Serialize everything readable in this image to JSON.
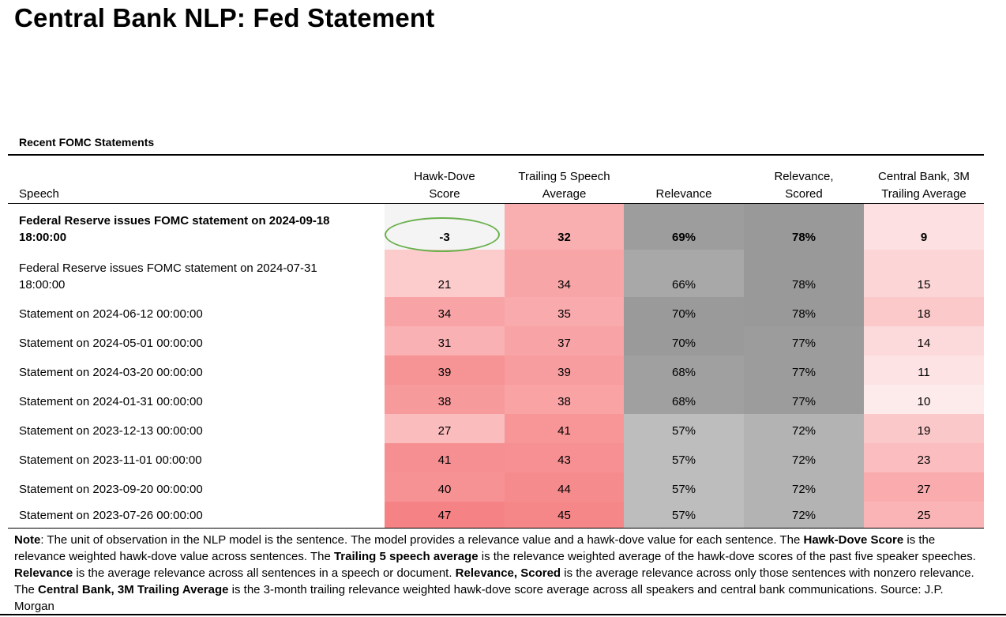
{
  "title": "Central Bank NLP: Fed Statement",
  "section_title": "Recent FOMC Statements",
  "columns": {
    "speech": "Speech",
    "hawk_dove": "Hawk-Dove\nScore",
    "trailing5": "Trailing 5 Speech\nAverage",
    "relevance": "Relevance",
    "relevance_scored": "Relevance,\nScored",
    "cb_3m": "Central Bank, 3M\nTrailing Average"
  },
  "rows": [
    {
      "speech": "Federal Reserve issues FOMC statement on 2024-09-18\n18:00:00",
      "hawk_dove": "-3",
      "trailing5": "32",
      "relevance": "69%",
      "relevance_scored": "78%",
      "cb_3m": "9",
      "bold": true,
      "colors": {
        "hawk_dove": "#f4f4f4",
        "trailing5": "#f9aeb0",
        "relevance": "#9d9d9d",
        "relevance_scored": "#999999",
        "cb_3m": "#fde0e1"
      }
    },
    {
      "speech": "Federal Reserve issues FOMC statement on 2024-07-31\n18:00:00",
      "hawk_dove": "21",
      "trailing5": "34",
      "relevance": "66%",
      "relevance_scored": "78%",
      "cb_3m": "15",
      "bold": false,
      "colors": {
        "hawk_dove": "#fccccd",
        "trailing5": "#f8a5a7",
        "relevance": "#a8a8a8",
        "relevance_scored": "#999999",
        "cb_3m": "#fcd5d6"
      }
    },
    {
      "speech": "Statement on 2024-06-12 00:00:00",
      "hawk_dove": "34",
      "trailing5": "35",
      "relevance": "70%",
      "relevance_scored": "78%",
      "cb_3m": "18",
      "bold": false,
      "colors": {
        "hawk_dove": "#f8a3a5",
        "trailing5": "#f9aaac",
        "relevance": "#9a9a9a",
        "relevance_scored": "#999999",
        "cb_3m": "#fbc9ca"
      }
    },
    {
      "speech": "Statement on 2024-05-01 00:00:00",
      "hawk_dove": "31",
      "trailing5": "37",
      "relevance": "70%",
      "relevance_scored": "77%",
      "cb_3m": "14",
      "bold": false,
      "colors": {
        "hawk_dove": "#fab1b3",
        "trailing5": "#f8a3a5",
        "relevance": "#9a9a9a",
        "relevance_scored": "#9c9c9c",
        "cb_3m": "#fcd9da"
      }
    },
    {
      "speech": "Statement on 2024-03-20 00:00:00",
      "hawk_dove": "39",
      "trailing5": "39",
      "relevance": "68%",
      "relevance_scored": "77%",
      "cb_3m": "11",
      "bold": false,
      "colors": {
        "hawk_dove": "#f69395",
        "trailing5": "#f89d9f",
        "relevance": "#a0a0a0",
        "relevance_scored": "#9c9c9c",
        "cb_3m": "#fde3e4"
      }
    },
    {
      "speech": "Statement on 2024-01-31 00:00:00",
      "hawk_dove": "38",
      "trailing5": "38",
      "relevance": "68%",
      "relevance_scored": "77%",
      "cb_3m": "10",
      "bold": false,
      "colors": {
        "hawk_dove": "#f79a9c",
        "trailing5": "#f9a3a5",
        "relevance": "#a0a0a0",
        "relevance_scored": "#9c9c9c",
        "cb_3m": "#fdeaea"
      }
    },
    {
      "speech": "Statement on 2023-12-13 00:00:00",
      "hawk_dove": "27",
      "trailing5": "41",
      "relevance": "57%",
      "relevance_scored": "72%",
      "cb_3m": "19",
      "bold": false,
      "colors": {
        "hawk_dove": "#fbbcbe",
        "trailing5": "#f79597",
        "relevance": "#bdbdbd",
        "relevance_scored": "#b3b3b3",
        "cb_3m": "#fbc8c9"
      }
    },
    {
      "speech": "Statement on 2023-11-01 00:00:00",
      "hawk_dove": "41",
      "trailing5": "43",
      "relevance": "57%",
      "relevance_scored": "72%",
      "cb_3m": "23",
      "bold": false,
      "colors": {
        "hawk_dove": "#f68f91",
        "trailing5": "#f69092",
        "relevance": "#bdbdbd",
        "relevance_scored": "#b3b3b3",
        "cb_3m": "#fbbdbf"
      }
    },
    {
      "speech": "Statement on 2023-09-20 00:00:00",
      "hawk_dove": "40",
      "trailing5": "44",
      "relevance": "57%",
      "relevance_scored": "72%",
      "cb_3m": "27",
      "bold": false,
      "colors": {
        "hawk_dove": "#f79294",
        "trailing5": "#f68b8d",
        "relevance": "#bdbdbd",
        "relevance_scored": "#b3b3b3",
        "cb_3m": "#f9abad"
      }
    },
    {
      "speech": "Statement on 2023-07-26 00:00:00",
      "hawk_dove": "47",
      "trailing5": "45",
      "relevance": "57%",
      "relevance_scored": "72%",
      "cb_3m": "25",
      "bold": false,
      "colors": {
        "hawk_dove": "#f58385",
        "trailing5": "#f58789",
        "relevance": "#bdbdbd",
        "relevance_scored": "#b3b3b3",
        "cb_3m": "#fab4b6"
      }
    }
  ],
  "note": [
    {
      "t": "Note",
      "b": true
    },
    {
      "t": ": The unit of observation in the NLP model is the sentence. The model provides a relevance value and a hawk-dove value for each sentence. The ",
      "b": false
    },
    {
      "t": "Hawk-Dove Score",
      "b": true
    },
    {
      "t": " is the relevance weighted hawk-dove value across sentences. The ",
      "b": false
    },
    {
      "t": "Trailing 5 speech average",
      "b": true
    },
    {
      "t": " is the relevance weighted average of the hawk-dove scores of the past five speaker speeches. ",
      "b": false
    },
    {
      "t": "Relevance",
      "b": true
    },
    {
      "t": " is the average relevance across all sentences in a speech or document. ",
      "b": false
    },
    {
      "t": "Relevance, Scored",
      "b": true
    },
    {
      "t": " is the average relevance across only those sentences with nonzero relevance. The ",
      "b": false
    },
    {
      "t": "Central Bank, 3M Trailing Average",
      "b": true
    },
    {
      "t": " is the 3-month trailing relevance weighted hawk-dove score average across all speakers and central bank communications. Source: J.P. Morgan",
      "b": false
    }
  ]
}
